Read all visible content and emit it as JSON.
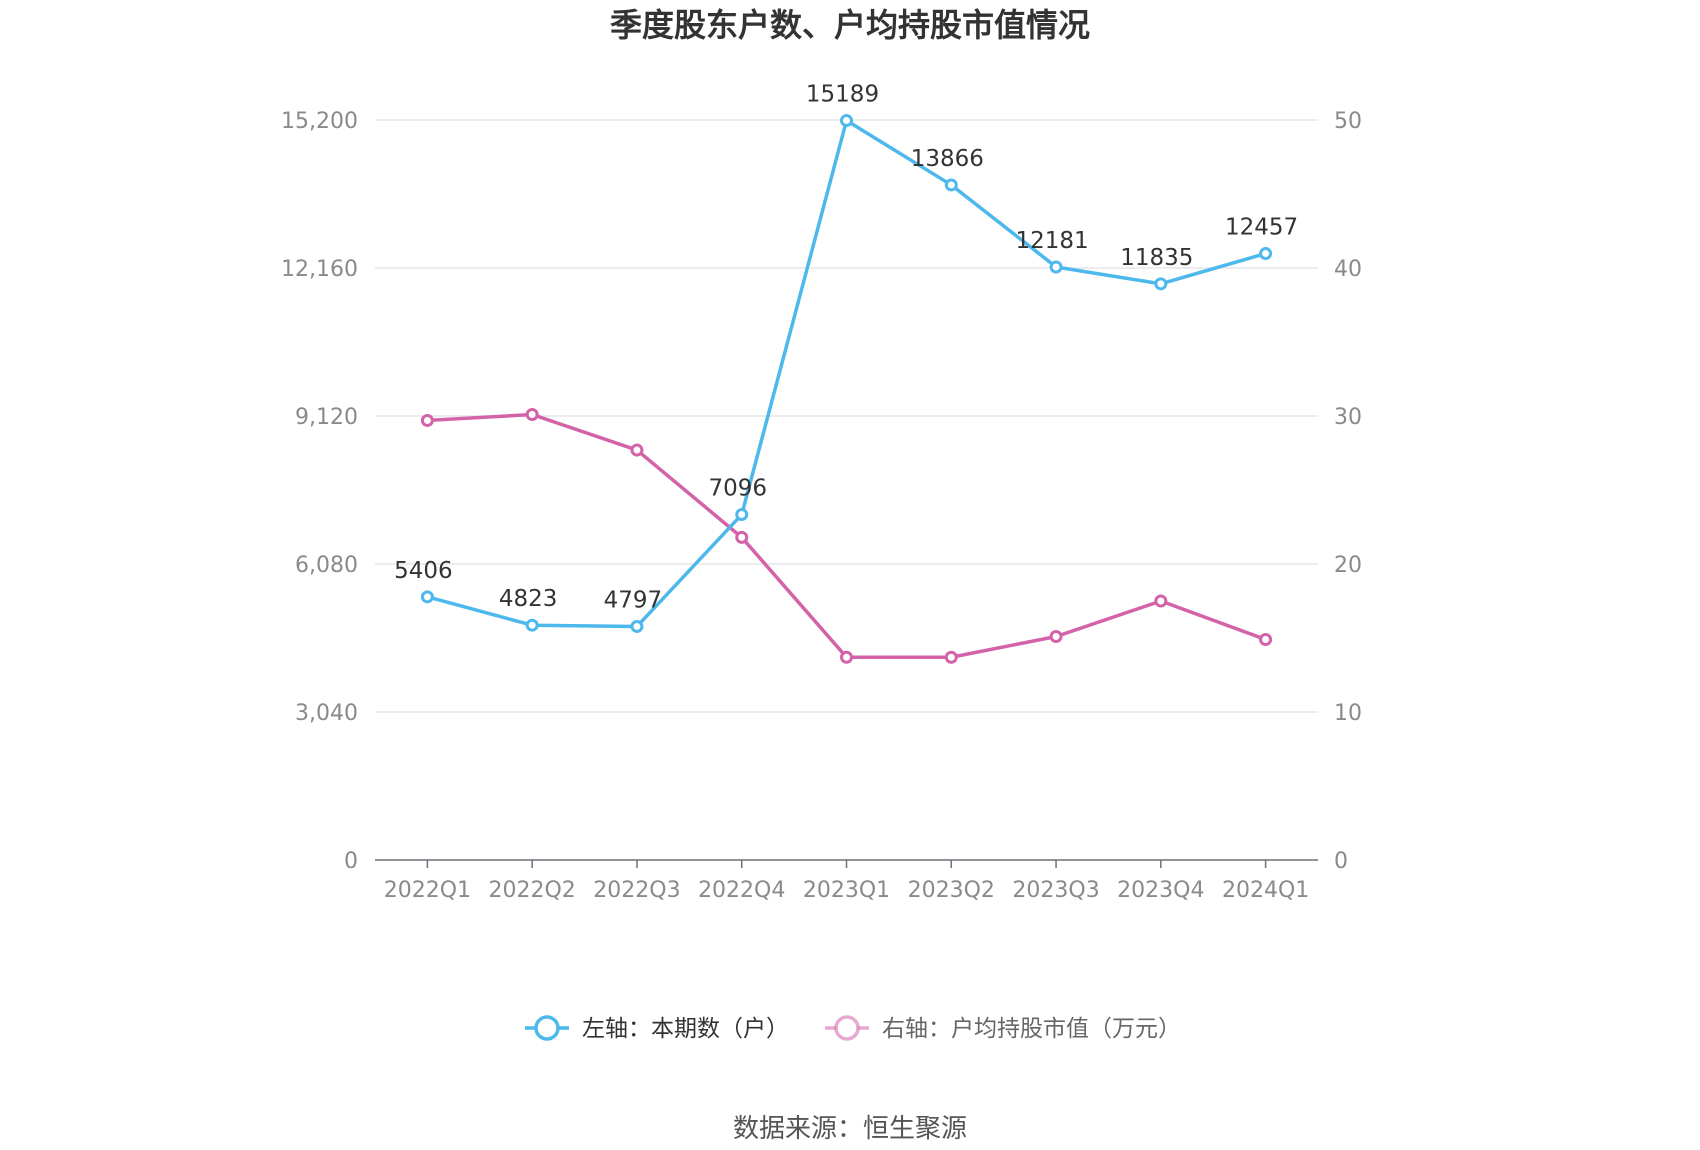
{
  "chart_data": {
    "type": "line",
    "title": "季度股东户数、户均持股市值情况",
    "categories": [
      "2022Q1",
      "2022Q2",
      "2022Q3",
      "2022Q4",
      "2023Q1",
      "2023Q2",
      "2023Q3",
      "2023Q4",
      "2024Q1"
    ],
    "y_left": {
      "min": 0,
      "max": 15200,
      "ticks": [
        "0",
        "3,040",
        "6,080",
        "9,120",
        "12,160",
        "15,200"
      ],
      "tick_values": [
        0,
        3040,
        6080,
        9120,
        12160,
        15200
      ]
    },
    "y_right": {
      "min": 0,
      "max": 50,
      "ticks": [
        "0",
        "10",
        "20",
        "30",
        "40",
        "50"
      ],
      "tick_values": [
        0,
        10,
        20,
        30,
        40,
        50
      ]
    },
    "series": [
      {
        "name": "左轴：本期数（户）",
        "axis": "left",
        "color": "#4db8ec",
        "values": [
          5406,
          4823,
          4797,
          7096,
          15189,
          13866,
          12181,
          11835,
          12457
        ],
        "labels": [
          "5406",
          "4823",
          "4797",
          "7096",
          "15189",
          "13866",
          "12181",
          "11835",
          "12457"
        ]
      },
      {
        "name": "右轴：户均持股市值（万元）",
        "axis": "right",
        "color": "#d462a8",
        "values": [
          29.7,
          30.1,
          27.7,
          21.8,
          13.7,
          13.7,
          15.1,
          17.5,
          14.9
        ]
      }
    ],
    "grid": true,
    "legend_position": "bottom"
  },
  "source": "数据来源：恒生聚源"
}
